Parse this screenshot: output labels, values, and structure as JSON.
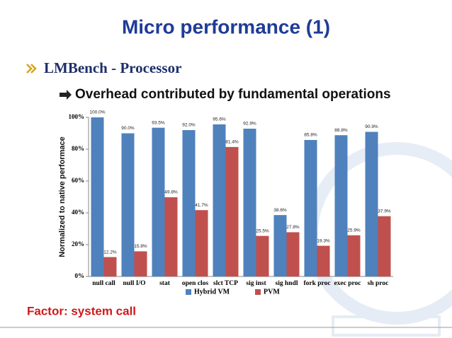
{
  "slide_title": "Micro performance (1)",
  "heading": "LMBench - Processor",
  "subheading": "Overhead contributed by fundamental operations",
  "footer_note": "Factor: system call",
  "chart_data": {
    "type": "bar",
    "y_label": "Normalized to native performace",
    "categories": [
      "null call",
      "null I/O",
      "stat",
      "open clos",
      "slct TCP",
      "sig inst",
      "sig hndl",
      "fork proc",
      "exec proc",
      "sh proc"
    ],
    "series": [
      {
        "name": "Hybrid VM",
        "color": "#4f81bd",
        "values": [
          100,
          90,
          93.5,
          92,
          95.6,
          92.9,
          38.6,
          85.8,
          88.8,
          90.9
        ],
        "value_labels": [
          "100.0%",
          "90.0%",
          "93.5%",
          "92.0%",
          "95.6%",
          "92.9%",
          "38.6%",
          "85.8%",
          "88.8%",
          "90.9%"
        ]
      },
      {
        "name": "PVM",
        "color": "#c0504d",
        "values": [
          12.2,
          15.8,
          49.8,
          41.7,
          81.4,
          25.5,
          27.8,
          19.3,
          25.9,
          37.9
        ],
        "value_labels": [
          "12.2%",
          "15.8%",
          "49.8%",
          "41.7%",
          "81.4%",
          "25.5%",
          "27.8%",
          "19.3%",
          "25.9%",
          "37.9%"
        ]
      }
    ],
    "ylim": [
      0,
      100
    ],
    "yticks": [
      {
        "value": 0,
        "label": "0%"
      },
      {
        "value": 20,
        "label": "20%"
      },
      {
        "value": 40,
        "label": "40%"
      },
      {
        "value": 60,
        "label": "60%"
      },
      {
        "value": 80,
        "label": "80%"
      },
      {
        "value": 100,
        "label": "100%"
      }
    ],
    "legend": "bottom"
  }
}
